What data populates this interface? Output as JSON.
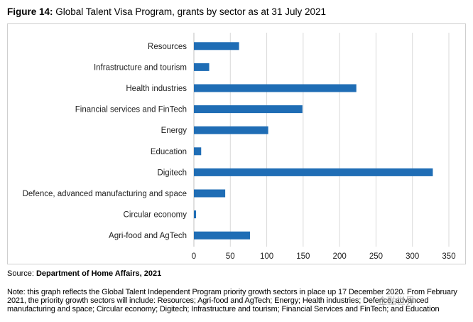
{
  "figure": {
    "number": "Figure 14:",
    "title": "Global Talent Visa Program, grants by sector as at 31 July 2021"
  },
  "chart_data": {
    "type": "bar",
    "orientation": "horizontal",
    "categories": [
      "Resources",
      "Infrastructure and tourism",
      "Health industries",
      "Financial services and FinTech",
      "Energy",
      "Education",
      "Digitech",
      "Defence, advanced manufacturing and space",
      "Circular economy",
      "Agri-food and AgTech"
    ],
    "values": [
      62,
      21,
      223,
      149,
      102,
      10,
      328,
      43,
      3,
      77
    ],
    "xlim": [
      0,
      350
    ],
    "xticks": [
      0,
      50,
      100,
      150,
      200,
      250,
      300,
      350
    ],
    "grid": "vertical",
    "bar_color": "#1f6db5",
    "legend": "none"
  },
  "source": {
    "label": "Source: ",
    "value": "Department of Home Affairs, 2021"
  },
  "note": "Note: this graph reflects the Global Talent Independent Program priority growth sectors in place up 17 December 2020. From February 2021, the priority growth sectors will include: Resources; Agri-food and AgTech; Energy; Health industries; Defence, advanced manufacturing and space; Circular economy; Digitech; Infrastructure and tourism; Financial Services and FinTech; and Education",
  "watermark": "金融世界"
}
